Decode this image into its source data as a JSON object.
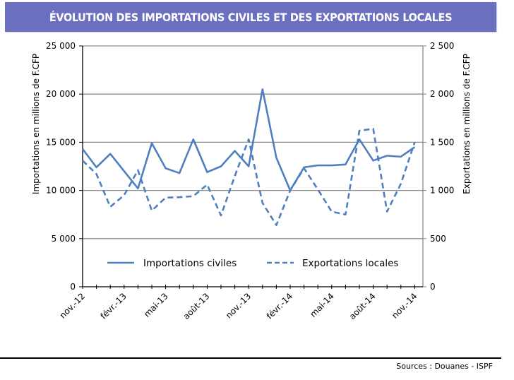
{
  "title": "ÉVOLUTION DES IMPORTATIONS CIVILES ET DES EXPORTATIONS LOCALES",
  "source": "Sources : Douanes - ISPF",
  "chart_data": {
    "type": "line",
    "x": [
      "nov.-12",
      "déc.-12",
      "janv.-13",
      "févr.-13",
      "mars-13",
      "avr.-13",
      "mai-13",
      "juin-13",
      "juil.-13",
      "août-13",
      "sept.-13",
      "oct.-13",
      "nov.-13",
      "déc.-13",
      "janv.-14",
      "févr.-14",
      "mars-14",
      "avr.-14",
      "mai-14",
      "juin-14",
      "juil.-14",
      "août-14",
      "sept.-14",
      "oct.-14",
      "nov.-14"
    ],
    "x_tick_labels": [
      "nov.-12",
      "févr.-13",
      "mai-13",
      "août-13",
      "nov.-13",
      "févr.-14",
      "mai-14",
      "août-14",
      "nov.-14"
    ],
    "ylabel": "Importations en millions de F.CFP",
    "y2label": "Exportations en millions de F.CFP",
    "ylim": [
      0,
      25000
    ],
    "y2lim": [
      0,
      2500
    ],
    "y_ticks": [
      "0",
      "5 000",
      "10 000",
      "15 000",
      "20 000",
      "25 000"
    ],
    "y2_ticks": [
      "0",
      "500",
      "1 000",
      "1 500",
      "2 000",
      "2 500"
    ],
    "grid": true,
    "legend_position": "bottom-inside",
    "color": "#4f7fbf",
    "series": [
      {
        "name": "Importations civiles",
        "axis": "left",
        "style": "solid",
        "values": [
          14300,
          12400,
          13800,
          12000,
          10200,
          14900,
          12300,
          11800,
          15300,
          11900,
          12500,
          14100,
          12500,
          20500,
          13400,
          10000,
          12400,
          12600,
          12600,
          12700,
          15300,
          13100,
          13600,
          13500,
          14500
        ]
      },
      {
        "name": "Exportations locales",
        "axis": "right",
        "style": "dashed",
        "values": [
          1310,
          1170,
          830,
          950,
          1210,
          790,
          925,
          930,
          940,
          1060,
          740,
          1150,
          1530,
          870,
          640,
          1000,
          1230,
          1010,
          780,
          750,
          1620,
          1640,
          780,
          1070,
          1500
        ]
      }
    ]
  }
}
